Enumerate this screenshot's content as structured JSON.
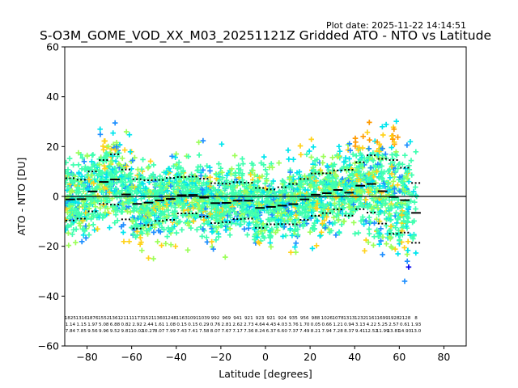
{
  "chart_data": {
    "type": "scatter",
    "title": "S-O3M_GOME_VOD_XX_M03_20251121Z Gridded ATO - NTO vs Latitude",
    "plot_date": "Plot date: 2025-11-22 14:14:51",
    "xlabel": "Latitude [degrees]",
    "ylabel": "ATO - NTO [DU]",
    "xlim": [
      -90,
      90
    ],
    "ylim": [
      -60,
      60
    ],
    "x_ticks": [
      "−80",
      "−60",
      "−40",
      "−20",
      "0",
      "20",
      "40",
      "60",
      "80"
    ],
    "y_ticks": [
      "−60",
      "−40",
      "−20",
      "0",
      "20",
      "40",
      "60"
    ],
    "x_tick_values": [
      -80,
      -60,
      -40,
      -20,
      0,
      20,
      40,
      60,
      80
    ],
    "y_tick_values": [
      -60,
      -40,
      -20,
      0,
      20,
      40,
      60
    ],
    "zero_line": 0,
    "marker": "+",
    "colors": {
      "dark_blue": "#0000ee",
      "blue": "#1f8fff",
      "cyan": "#00e5ee",
      "aquamarine": "#40ffb0",
      "light_green": "#9cff5a",
      "yellow": "#ffd21a",
      "orange": "#ff9a00",
      "bin_mean": "#000000"
    },
    "bin_centers": [
      -87.5,
      -82.5,
      -77.5,
      -72.5,
      -67.5,
      -62.5,
      -57.5,
      -52.5,
      -47.5,
      -42.5,
      -37.5,
      -32.5,
      -27.5,
      -22.5,
      -17.5,
      -12.5,
      -7.5,
      -2.5,
      2.5,
      7.5,
      12.5,
      17.5,
      22.5,
      27.5,
      32.5,
      37.5,
      42.5,
      47.5,
      52.5,
      57.5,
      62.5,
      67.5
    ],
    "bin_mean": [
      -1.2,
      -1.1,
      2.0,
      5.8,
      6.8,
      0.8,
      -3.0,
      -2.5,
      -1.6,
      -1.0,
      0.5,
      0.6,
      -0.5,
      -2.7,
      -2.6,
      -1.7,
      -1.7,
      -4.6,
      -4.2,
      -3.7,
      -3.1,
      -1.2,
      0.7,
      1.3,
      2.6,
      1.5,
      4.3,
      5.0,
      2.1,
      -0.2,
      -1.5,
      -6.6
    ],
    "bin_std": [
      8.5,
      7.8,
      8.0,
      8.8,
      10.1,
      10.0,
      9.9,
      9.0,
      8.2,
      8.4,
      7.3,
      7.4,
      7.6,
      8.0,
      7.7,
      7.4,
      7.2,
      8.0,
      7.0,
      7.4,
      8.1,
      8.2,
      8.5,
      8.0,
      7.8,
      9.2,
      9.4,
      11.5,
      13.0,
      14.8,
      13.0,
      12.0
    ],
    "bin_stats_text": [
      [
        "1825",
        "1.14",
        "7.84"
      ],
      [
        "1316",
        "1.15",
        "7.85"
      ],
      [
        "1876",
        "1.97",
        "9.56"
      ],
      [
        "1552",
        "5.08",
        "9.96"
      ],
      [
        "1361",
        "6.88",
        "9.52"
      ],
      [
        "2111",
        "0.82",
        "9.81"
      ],
      [
        "1173",
        "2.92",
        "10.02"
      ],
      [
        "1521",
        "2.44",
        "10.27"
      ],
      [
        "1360",
        "1.61",
        "8.07"
      ],
      [
        "1248",
        "1.08",
        "7.99"
      ],
      [
        "1163",
        "0.15",
        "7.43"
      ],
      [
        "1091",
        "0.15",
        "7.41"
      ],
      [
        "1039",
        "0.29",
        "7.58"
      ],
      [
        "992",
        "0.76",
        "8.07"
      ],
      [
        "969",
        "2.81",
        "7.67"
      ],
      [
        "941",
        "2.62",
        "7.17"
      ],
      [
        "921",
        "2.73",
        "7.36"
      ],
      [
        "923",
        "4.64",
        "8.24"
      ],
      [
        "921",
        "4.43",
        "6.37"
      ],
      [
        "924",
        "4.03",
        "6.60"
      ],
      [
        "935",
        "3.76",
        "7.37"
      ],
      [
        "956",
        "1.70",
        "7.49"
      ],
      [
        "988",
        "0.05",
        "8.21"
      ],
      [
        "1026",
        "0.66",
        "7.94"
      ],
      [
        "1078",
        "1.21",
        "7.28"
      ],
      [
        "1313",
        "0.94",
        "8.37"
      ],
      [
        "1232",
        "3.13",
        "9.41"
      ],
      [
        "1161",
        "4.22",
        "12.52"
      ],
      [
        "1699",
        "5.25",
        "11.99"
      ],
      [
        "1928",
        "2.57",
        "13.81"
      ],
      [
        "2128",
        "0.61",
        "14.93"
      ],
      [
        "8",
        "1.93",
        "13.0"
      ]
    ]
  }
}
